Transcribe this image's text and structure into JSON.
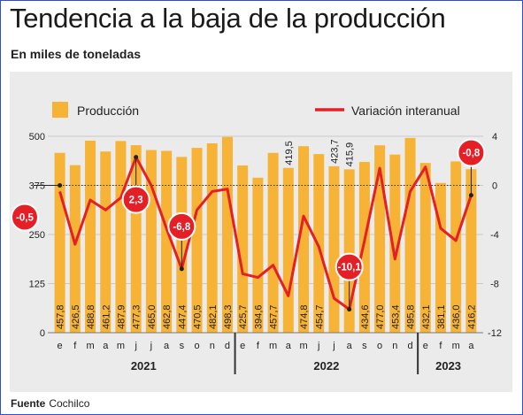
{
  "header": {
    "title": "Tendencia a la baja de la producción",
    "subtitle": "En miles de toneladas"
  },
  "footer": {
    "source_label": "Fuente",
    "source_value": "Cochilco"
  },
  "colors": {
    "bar": "#f7b336",
    "line": "#e41f26",
    "panel": "#ebebeb",
    "text": "#222222"
  },
  "chart_data": {
    "type": "bar+line",
    "legend": {
      "position": "top",
      "items": [
        "Producción",
        "Variación interanual"
      ]
    },
    "categories": [
      "e",
      "f",
      "m",
      "a",
      "m",
      "j",
      "j",
      "a",
      "s",
      "o",
      "n",
      "d",
      "e",
      "f",
      "m",
      "a",
      "m",
      "j",
      "j",
      "a",
      "s",
      "o",
      "n",
      "d",
      "e",
      "f",
      "m",
      "a"
    ],
    "years": [
      {
        "label": "2021",
        "start": 0,
        "end": 11
      },
      {
        "label": "2022",
        "start": 12,
        "end": 23
      },
      {
        "label": "2023",
        "start": 24,
        "end": 27
      }
    ],
    "series": [
      {
        "name": "Producción",
        "axis": "left",
        "values": [
          457.8,
          426.5,
          488.8,
          461.2,
          487.9,
          477.3,
          465.0,
          462.8,
          447.4,
          470.5,
          482.1,
          498.3,
          425.7,
          394.6,
          457.7,
          419.5,
          474.8,
          454.7,
          423.7,
          415.9,
          434.6,
          477.0,
          453.4,
          495.8,
          432.1,
          381.1,
          436.0,
          416.2
        ],
        "labels": [
          "457,8",
          "426,5",
          "488,8",
          "461,2",
          "487,9",
          "477,3",
          "465,0",
          "462,8",
          "447,4",
          "470,5",
          "482,1",
          "498,3",
          "425,7",
          "394,6",
          "457,7",
          "419,5",
          "474,8",
          "454,7",
          "423,7",
          "415,9",
          "434,6",
          "477,0",
          "453,4",
          "495,8",
          "432,1",
          "381,1",
          "436,0",
          "416,2"
        ],
        "label_above": [
          false,
          false,
          false,
          false,
          false,
          false,
          false,
          false,
          false,
          false,
          false,
          false,
          false,
          false,
          false,
          true,
          false,
          false,
          true,
          true,
          false,
          false,
          false,
          false,
          false,
          false,
          false,
          false
        ]
      },
      {
        "name": "Variación interanual",
        "axis": "right",
        "values": [
          -0.5,
          -4.8,
          -1.2,
          -2.0,
          -1.0,
          2.3,
          0.0,
          -3.5,
          -6.8,
          -2.0,
          -0.5,
          -0.3,
          -7.2,
          -7.5,
          -6.5,
          -9.0,
          -2.5,
          -5.0,
          -9.2,
          -10.1,
          -4.5,
          1.4,
          -6.0,
          -0.5,
          1.5,
          -3.5,
          -4.5,
          -0.8
        ]
      }
    ],
    "callouts": [
      {
        "index": 0,
        "text": "-0,5",
        "dot": "leader"
      },
      {
        "index": 5,
        "text": "2,3",
        "dot": "top"
      },
      {
        "index": 8,
        "text": "-6,8",
        "dot": "bottom"
      },
      {
        "index": 19,
        "text": "-10,1",
        "dot": "bottom"
      },
      {
        "index": 27,
        "text": "-0,8",
        "dot": "bottom"
      }
    ],
    "y_left": {
      "min": 0,
      "max": 500,
      "ticks": [
        "0",
        "125",
        "250",
        "375",
        "500"
      ]
    },
    "y_right": {
      "min": -12,
      "max": 4,
      "ticks": [
        "-12",
        "-8",
        "-4",
        "0",
        "4"
      ]
    },
    "reference_line": {
      "axis": "left",
      "value": 375,
      "style": "dotted"
    }
  }
}
